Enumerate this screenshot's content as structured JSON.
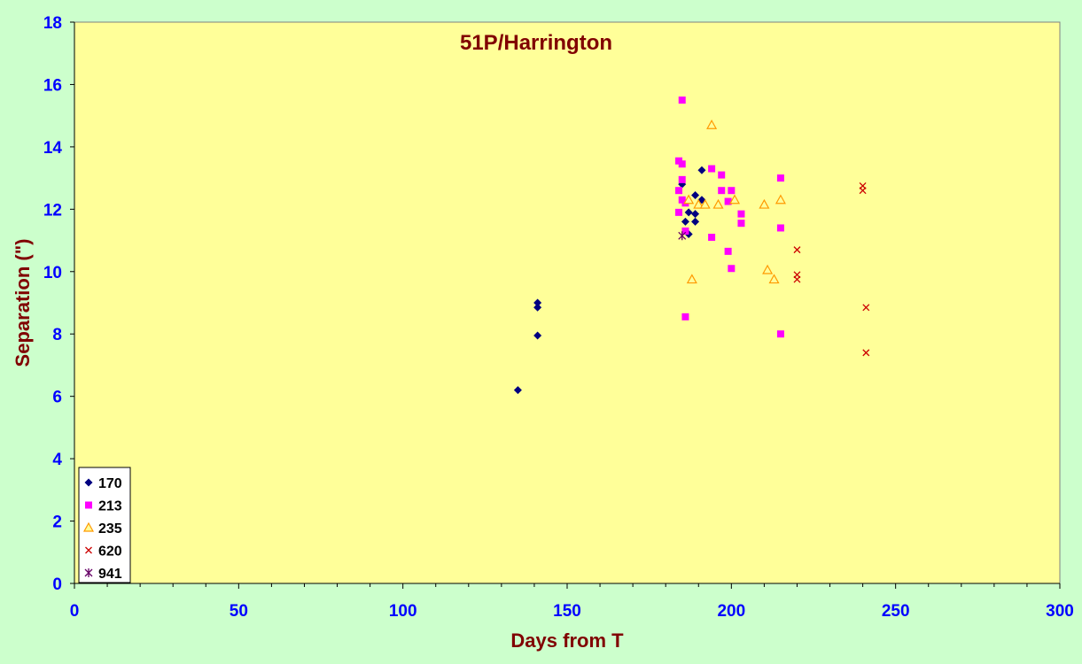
{
  "chart_data": {
    "type": "scatter",
    "title": "51P/Harrington",
    "xlabel": "Days from T",
    "ylabel": "Separation (\")",
    "xlim": [
      0,
      300
    ],
    "ylim": [
      0,
      18
    ],
    "xticks": [
      0,
      50,
      100,
      150,
      200,
      250,
      300
    ],
    "yticks": [
      0,
      2,
      4,
      6,
      8,
      10,
      12,
      14,
      16,
      18
    ],
    "grid": false,
    "legend_position": "bottom-left",
    "colors": {
      "outer_background": "#ccffcc",
      "plot_background": "#ffff99",
      "axis_text": "#0000ff",
      "title_text": "#800000"
    },
    "series": [
      {
        "name": "170",
        "marker": "diamond",
        "color": "#000080",
        "points": [
          [
            135,
            6.2
          ],
          [
            141,
            9.0
          ],
          [
            141,
            8.85
          ],
          [
            141,
            7.95
          ],
          [
            185,
            12.8
          ],
          [
            186,
            11.6
          ],
          [
            187,
            11.9
          ],
          [
            187,
            11.2
          ],
          [
            189,
            12.45
          ],
          [
            189,
            11.85
          ],
          [
            189,
            11.6
          ],
          [
            191,
            13.25
          ],
          [
            191,
            12.3
          ]
        ]
      },
      {
        "name": "213",
        "marker": "square",
        "color": "#ff00ff",
        "points": [
          [
            184,
            13.55
          ],
          [
            184,
            12.6
          ],
          [
            184,
            11.9
          ],
          [
            185,
            13.45
          ],
          [
            185,
            15.5
          ],
          [
            185,
            12.95
          ],
          [
            185,
            12.3
          ],
          [
            186,
            12.2
          ],
          [
            186,
            11.3
          ],
          [
            186,
            8.55
          ],
          [
            194,
            13.3
          ],
          [
            194,
            11.1
          ],
          [
            197,
            13.1
          ],
          [
            197,
            12.6
          ],
          [
            199,
            12.25
          ],
          [
            199,
            10.65
          ],
          [
            200,
            12.6
          ],
          [
            200,
            10.1
          ],
          [
            203,
            11.85
          ],
          [
            203,
            11.55
          ],
          [
            215,
            13.0
          ],
          [
            215,
            11.4
          ],
          [
            215,
            8.0
          ]
        ]
      },
      {
        "name": "235",
        "marker": "triangle",
        "color": "#ff9900",
        "points": [
          [
            187,
            12.3
          ],
          [
            188,
            9.75
          ],
          [
            190,
            12.15
          ],
          [
            192,
            12.15
          ],
          [
            194,
            14.7
          ],
          [
            196,
            12.15
          ],
          [
            201,
            12.3
          ],
          [
            210,
            12.15
          ],
          [
            211,
            10.05
          ],
          [
            213,
            9.75
          ],
          [
            215,
            12.3
          ]
        ]
      },
      {
        "name": "620",
        "marker": "x",
        "color": "#cc0000",
        "points": [
          [
            220,
            10.7
          ],
          [
            220,
            9.9
          ],
          [
            220,
            9.75
          ],
          [
            240,
            12.75
          ],
          [
            240,
            12.6
          ],
          [
            241,
            8.85
          ],
          [
            241,
            7.4
          ]
        ]
      },
      {
        "name": "941",
        "marker": "star",
        "color": "#660066",
        "points": [
          [
            185,
            11.15
          ]
        ]
      }
    ]
  }
}
